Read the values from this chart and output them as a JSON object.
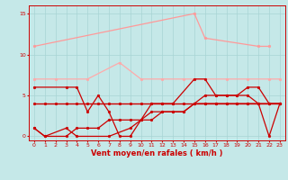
{
  "x": [
    0,
    1,
    2,
    3,
    4,
    5,
    6,
    7,
    8,
    9,
    10,
    11,
    12,
    13,
    14,
    15,
    16,
    17,
    18,
    19,
    20,
    21,
    22,
    23
  ],
  "series": [
    {
      "name": "line_pink_top",
      "color": "#ff9999",
      "lw": 0.9,
      "ms": 2.0,
      "points": [
        [
          0,
          11
        ],
        [
          15,
          15
        ],
        [
          16,
          12
        ],
        [
          21,
          11
        ],
        [
          22,
          11
        ]
      ]
    },
    {
      "name": "line_pink_mid",
      "color": "#ffaaaa",
      "lw": 0.9,
      "ms": 2.0,
      "points": [
        [
          0,
          7
        ],
        [
          2,
          7
        ],
        [
          5,
          7
        ],
        [
          8,
          9
        ],
        [
          10,
          7
        ],
        [
          12,
          7
        ],
        [
          14,
          7
        ],
        [
          18,
          7
        ],
        [
          20,
          7
        ],
        [
          22,
          7
        ],
        [
          23,
          7
        ]
      ]
    },
    {
      "name": "line_dark_volatile",
      "color": "#cc0000",
      "lw": 0.9,
      "ms": 2.0,
      "points": [
        [
          0,
          6
        ],
        [
          3,
          6
        ],
        [
          4,
          6
        ],
        [
          5,
          3
        ],
        [
          6,
          5
        ],
        [
          7,
          3
        ],
        [
          8,
          0
        ],
        [
          9,
          0
        ],
        [
          11,
          4
        ],
        [
          12,
          4
        ],
        [
          13,
          4
        ],
        [
          15,
          7
        ],
        [
          16,
          7
        ],
        [
          17,
          5
        ],
        [
          18,
          5
        ],
        [
          19,
          5
        ],
        [
          20,
          6
        ],
        [
          21,
          6
        ],
        [
          22,
          4
        ],
        [
          23,
          4
        ]
      ]
    },
    {
      "name": "line_flat",
      "color": "#cc0000",
      "lw": 1.0,
      "ms": 2.0,
      "points": [
        [
          0,
          4
        ],
        [
          1,
          4
        ],
        [
          2,
          4
        ],
        [
          3,
          4
        ],
        [
          4,
          4
        ],
        [
          5,
          4
        ],
        [
          6,
          4
        ],
        [
          7,
          4
        ],
        [
          8,
          4
        ],
        [
          9,
          4
        ],
        [
          10,
          4
        ],
        [
          11,
          4
        ],
        [
          12,
          4
        ],
        [
          13,
          4
        ],
        [
          14,
          4
        ],
        [
          15,
          4
        ],
        [
          16,
          4
        ],
        [
          17,
          4
        ],
        [
          18,
          4
        ],
        [
          19,
          4
        ],
        [
          20,
          4
        ],
        [
          21,
          4
        ],
        [
          22,
          4
        ],
        [
          23,
          4
        ]
      ]
    },
    {
      "name": "line_rising1",
      "color": "#cc0000",
      "lw": 0.9,
      "ms": 2.0,
      "points": [
        [
          0,
          1
        ],
        [
          1,
          0
        ],
        [
          3,
          1
        ],
        [
          4,
          0
        ],
        [
          7,
          0
        ],
        [
          9,
          1
        ],
        [
          10,
          2
        ],
        [
          11,
          2
        ],
        [
          12,
          3
        ],
        [
          13,
          3
        ],
        [
          14,
          3
        ],
        [
          15,
          4
        ],
        [
          16,
          5
        ],
        [
          17,
          5
        ],
        [
          18,
          5
        ],
        [
          19,
          5
        ],
        [
          20,
          5
        ],
        [
          21,
          4
        ],
        [
          22,
          0
        ],
        [
          23,
          4
        ]
      ]
    },
    {
      "name": "line_rising2",
      "color": "#cc0000",
      "lw": 0.9,
      "ms": 2.0,
      "points": [
        [
          0,
          1
        ],
        [
          1,
          0
        ],
        [
          3,
          0
        ],
        [
          4,
          1
        ],
        [
          5,
          1
        ],
        [
          6,
          1
        ],
        [
          7,
          2
        ],
        [
          8,
          2
        ],
        [
          9,
          2
        ],
        [
          10,
          2
        ],
        [
          11,
          3
        ],
        [
          12,
          3
        ],
        [
          13,
          3
        ],
        [
          14,
          3
        ],
        [
          15,
          4
        ],
        [
          16,
          4
        ],
        [
          17,
          4
        ],
        [
          18,
          4
        ],
        [
          19,
          4
        ],
        [
          20,
          4
        ],
        [
          21,
          4
        ],
        [
          22,
          4
        ],
        [
          23,
          4
        ]
      ]
    }
  ],
  "bg_color": "#c5e8e8",
  "grid_color": "#a8d4d4",
  "xlabel": "Vent moyen/en rafales ( km/h )",
  "xlabel_color": "#cc0000",
  "tick_color": "#cc0000",
  "ylim": [
    -0.5,
    16
  ],
  "xlim": [
    -0.5,
    23.5
  ],
  "yticks": [
    0,
    5,
    10,
    15
  ],
  "figw": 3.2,
  "figh": 2.0,
  "dpi": 100
}
